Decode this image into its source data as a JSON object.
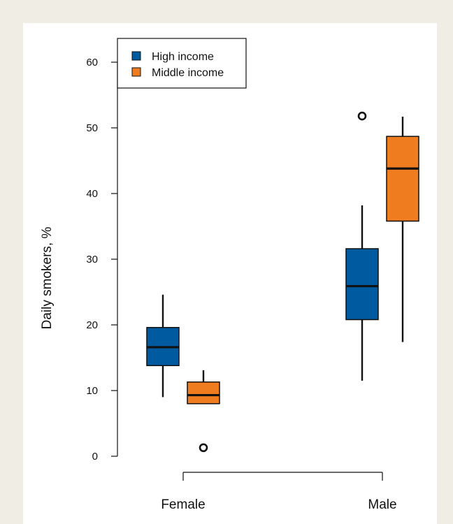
{
  "chart_data": {
    "type": "boxplot",
    "ylabel": "Daily smokers, %",
    "ylim": [
      0,
      60
    ],
    "yticks": [
      0,
      10,
      20,
      30,
      40,
      50,
      60
    ],
    "categories": [
      "Female",
      "Male"
    ],
    "legend_position": "top-left",
    "series": [
      {
        "name": "High income",
        "color": "#005aa0",
        "boxes": [
          {
            "category": "Female",
            "whisker_low": 9,
            "q1": 13.8,
            "median": 16.6,
            "q3": 19.6,
            "whisker_high": 24.6,
            "outliers": []
          },
          {
            "category": "Male",
            "whisker_low": 11.5,
            "q1": 20.8,
            "median": 25.9,
            "q3": 31.6,
            "whisker_high": 38.2,
            "outliers": [
              51.8
            ]
          }
        ]
      },
      {
        "name": "Middle income",
        "color": "#ef7c1e",
        "boxes": [
          {
            "category": "Female",
            "whisker_low": 8,
            "q1": 8,
            "median": 9.3,
            "q3": 11.3,
            "whisker_high": 13.1,
            "outliers": [
              1.3
            ]
          },
          {
            "category": "Male",
            "whisker_low": 17.4,
            "q1": 35.8,
            "median": 43.8,
            "q3": 48.7,
            "whisker_high": 51.7,
            "outliers": []
          }
        ]
      }
    ]
  }
}
